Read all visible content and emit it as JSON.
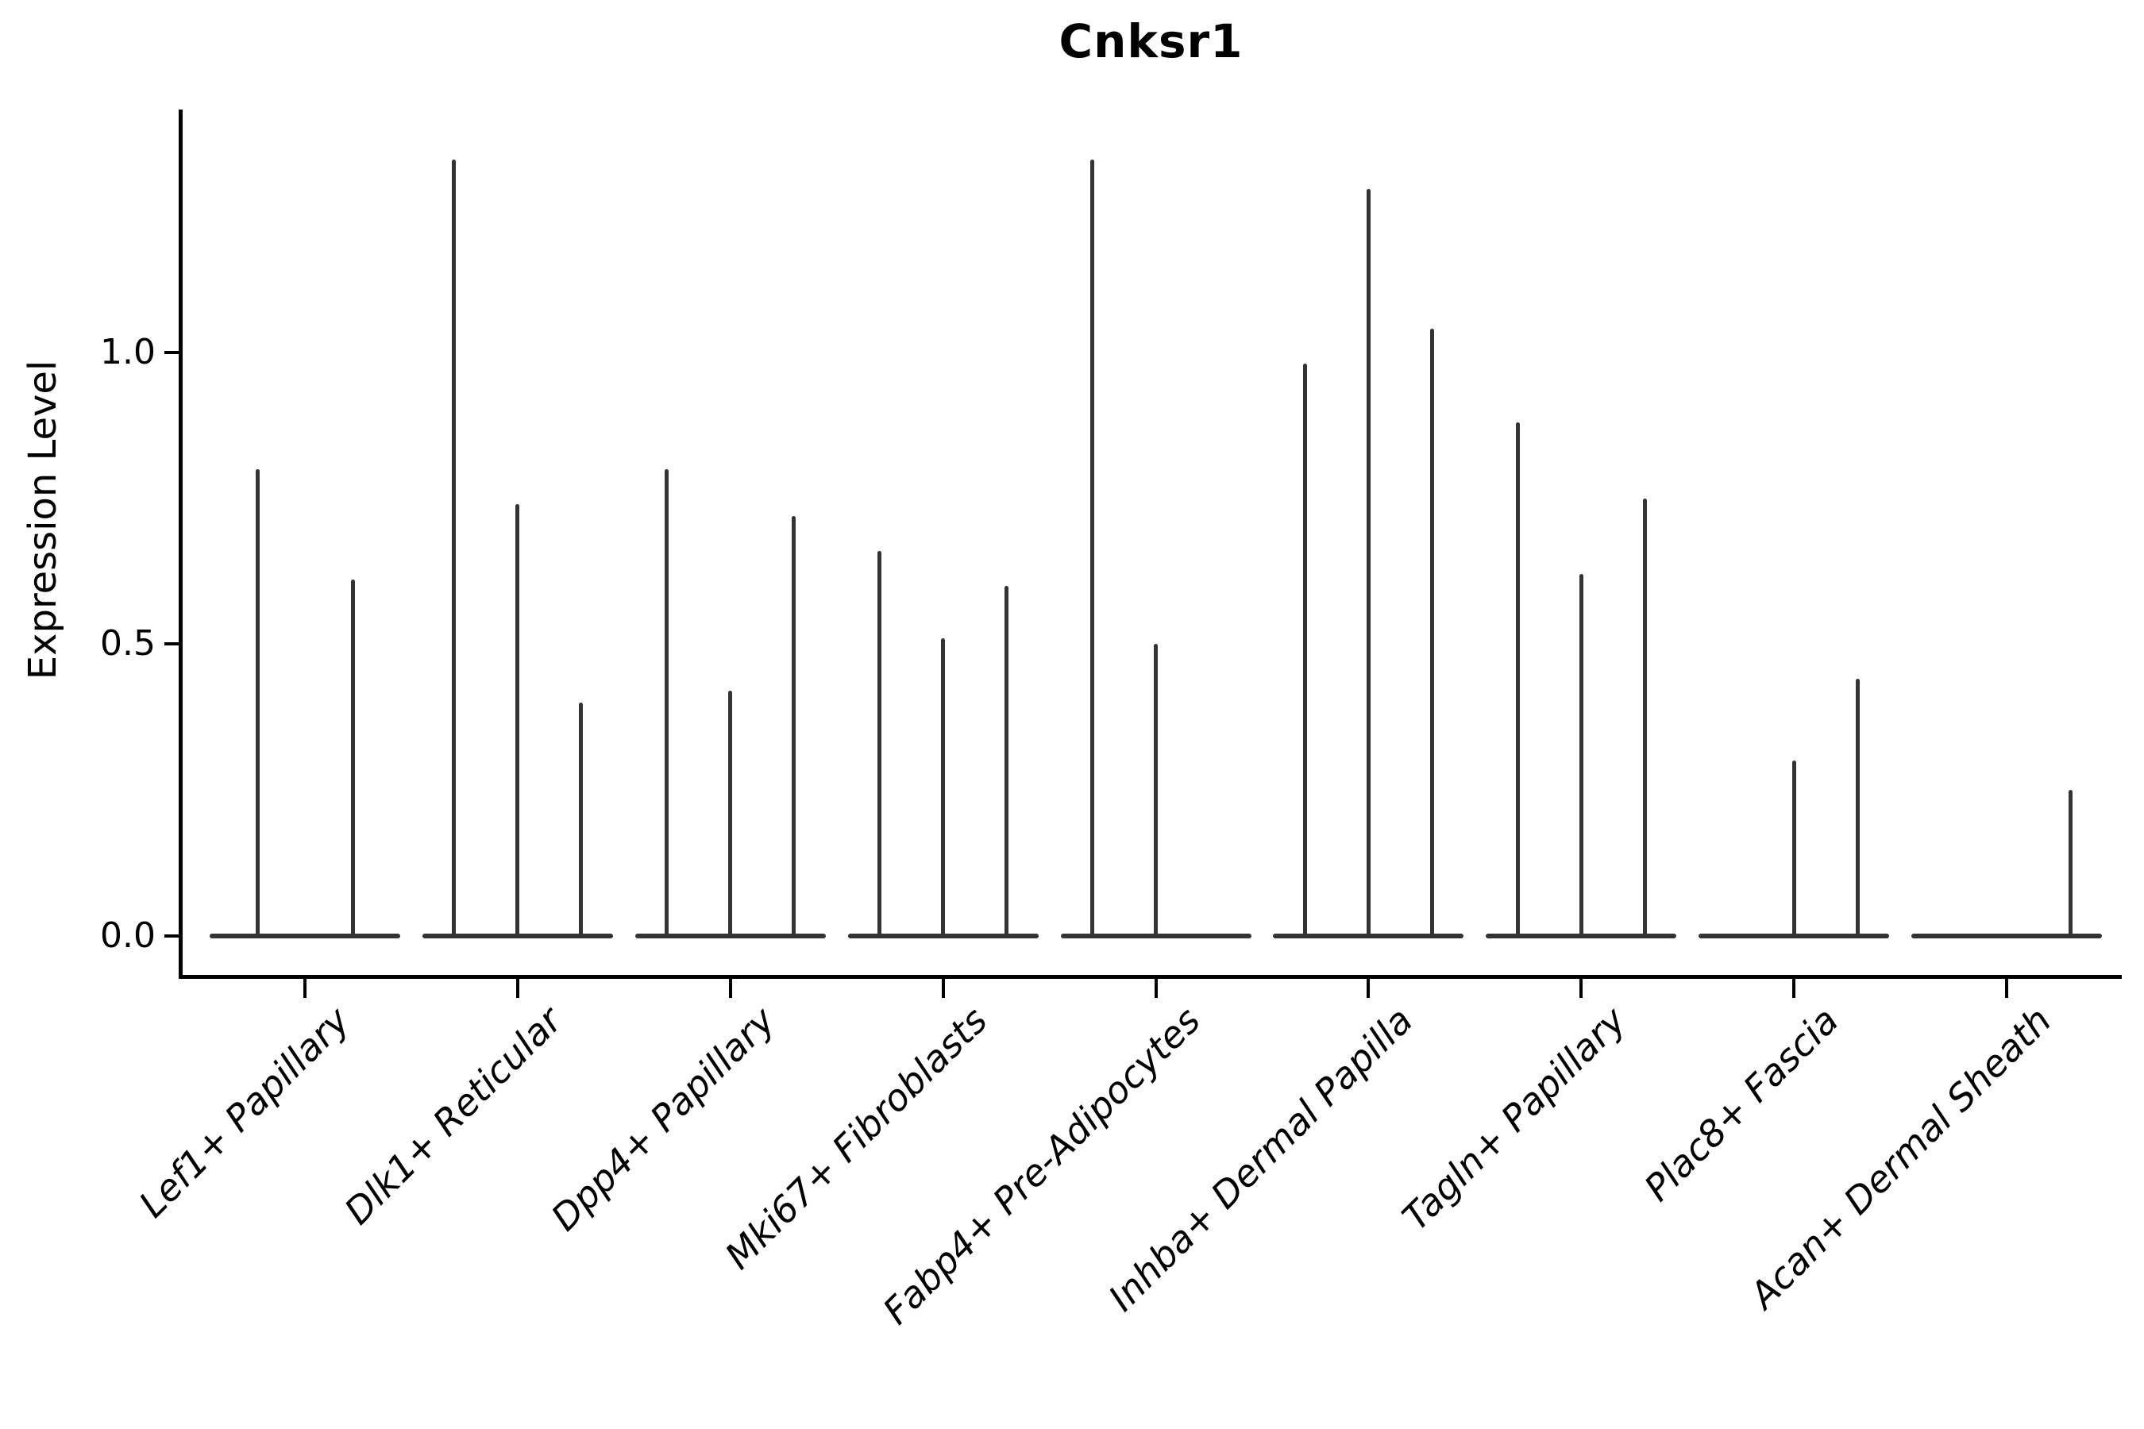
{
  "chart_data": {
    "type": "violin",
    "title": "Cnksr1",
    "xlabel": "",
    "ylabel": "Expression Level",
    "ylim": [
      -0.07,
      1.41
    ],
    "grid": false,
    "legend": null,
    "yticks": [
      {
        "label": "0.0",
        "value": 0.0
      },
      {
        "label": "0.5",
        "value": 0.5
      },
      {
        "label": "1.0",
        "value": 1.0
      }
    ],
    "categories": [
      "Lef1+ Papillary",
      "Dlk1+ Reticular",
      "Dpp4+ Papillary",
      "Mki67+ Fibroblasts",
      "Fabp4+ Pre-Adipocytes",
      "Inhba+ Dermal Papilla",
      "Tagln+ Papillary",
      "Plac8+ Fascia",
      "Acan+ Dermal Sheath"
    ],
    "groups": [
      {
        "category": "Lef1+ Papillary",
        "violin_max": [
          0.8,
          0.61
        ]
      },
      {
        "category": "Dlk1+ Reticular",
        "violin_max": [
          1.33,
          0.74,
          0.4
        ]
      },
      {
        "category": "Dpp4+ Papillary",
        "violin_max": [
          0.8,
          0.42,
          0.72
        ]
      },
      {
        "category": "Mki67+ Fibroblasts",
        "violin_max": [
          0.66,
          0.51,
          0.6
        ]
      },
      {
        "category": "Fabp4+ Pre-Adipocytes",
        "violin_max": [
          1.33,
          0.5,
          0.0
        ]
      },
      {
        "category": "Inhba+ Dermal Papilla",
        "violin_max": [
          0.98,
          1.28,
          1.04
        ]
      },
      {
        "category": "Tagln+ Papillary",
        "violin_max": [
          0.88,
          0.62,
          0.75
        ]
      },
      {
        "category": "Plac8+ Fascia",
        "violin_max": [
          0.0,
          0.3,
          0.44
        ]
      },
      {
        "category": "Acan+ Dermal Sheath",
        "violin_max": [
          0.0,
          0.0,
          0.25
        ]
      }
    ],
    "colors": {
      "violin": "#333333",
      "axis": "#000000",
      "text": "#000000",
      "background": "#ffffff"
    }
  }
}
